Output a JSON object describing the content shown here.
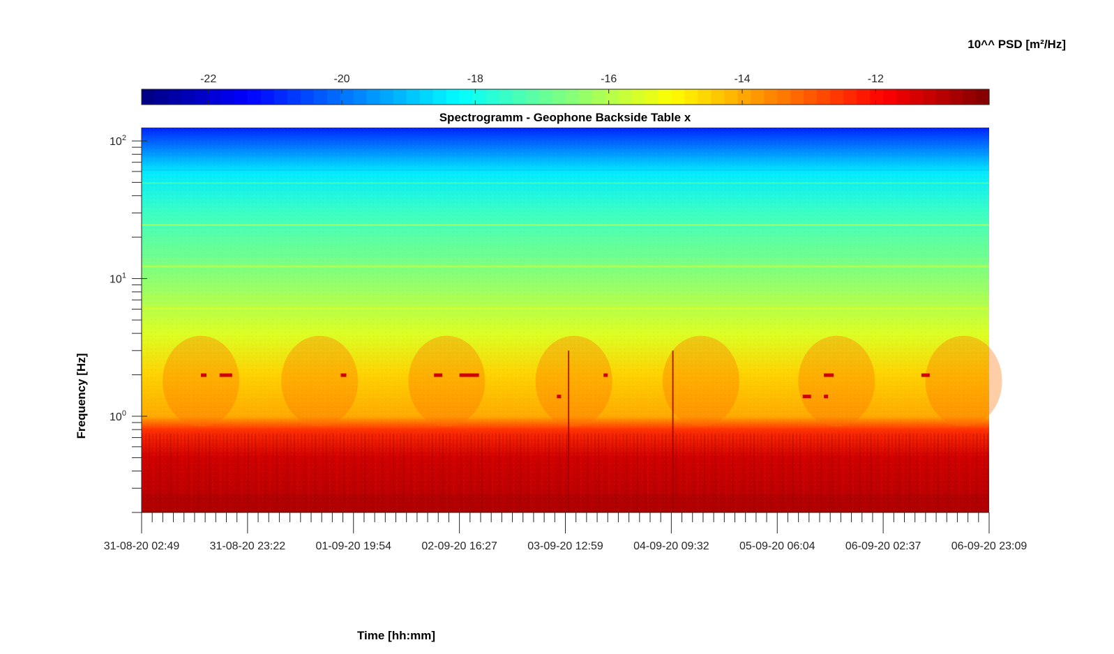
{
  "chart_data": {
    "type": "heatmap",
    "title": "Spectrogramm - Geophone Backside Table x",
    "xlabel": "Time [hh:mm]",
    "ylabel": "Frequency [Hz]",
    "y_scale": "log",
    "ylim": [
      0.2,
      125
    ],
    "y_ticks": [
      {
        "base": "10",
        "exp": "0",
        "value": 1
      },
      {
        "base": "10",
        "exp": "1",
        "value": 10
      },
      {
        "base": "10",
        "exp": "2",
        "value": 100
      }
    ],
    "x_ticks": [
      "31-08-20 02:49",
      "31-08-20 23:22",
      "01-09-20 19:54",
      "02-09-20 16:27",
      "03-09-20 12:59",
      "04-09-20 09:32",
      "05-09-20 06:04",
      "06-09-20 02:37",
      "06-09-20 23:09"
    ],
    "colorbar": {
      "label": "10^^ PSD [m²/Hz]",
      "range": [
        -23,
        -10.3
      ],
      "ticks": [
        "-22",
        "-20",
        "-18",
        "-16",
        "-14",
        "-12"
      ],
      "tick_values": [
        -22,
        -20,
        -18,
        -16,
        -14,
        -12
      ],
      "colormap": "jet"
    },
    "description_levels": [
      {
        "freq": 0.25,
        "value": -11.0
      },
      {
        "freq": 0.5,
        "value": -11.3
      },
      {
        "freq": 0.8,
        "value": -12.5
      },
      {
        "freq": 1.0,
        "value": -14.0
      },
      {
        "freq": 2.0,
        "value": -14.5
      },
      {
        "freq": 4.0,
        "value": -15.5
      },
      {
        "freq": 10,
        "value": -16.5
      },
      {
        "freq": 30,
        "value": -17.5
      },
      {
        "freq": 60,
        "value": -18.5
      },
      {
        "freq": 125,
        "value": -21.0
      }
    ]
  }
}
